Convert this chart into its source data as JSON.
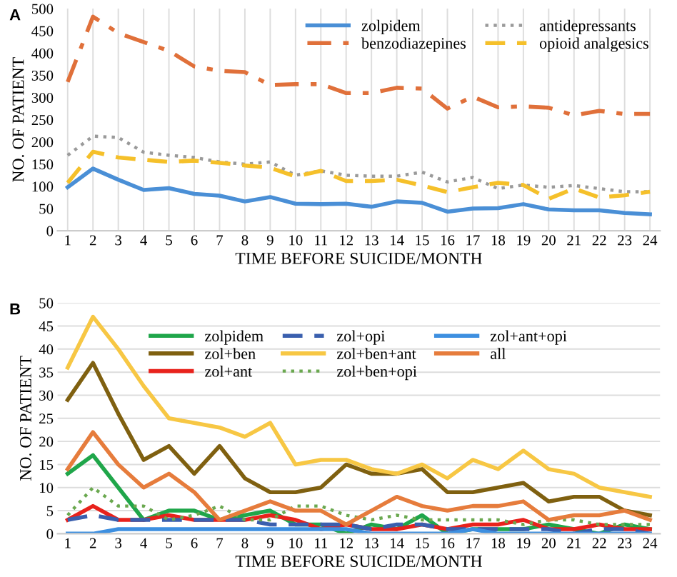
{
  "chart_data": [
    {
      "type": "line",
      "title": "A",
      "xlabel": "TIME BEFORE SUICIDE/MONTH",
      "ylabel": "NO. OF PATIENT",
      "categories": [
        "1",
        "2",
        "3",
        "4",
        "5",
        "6",
        "7",
        "8",
        "9",
        "10",
        "11",
        "12",
        "13",
        "14",
        "15",
        "16",
        "17",
        "18",
        "19",
        "20",
        "21",
        "22",
        "23",
        "24"
      ],
      "ylim": [
        0,
        500
      ],
      "yticks": [
        0,
        50,
        100,
        150,
        200,
        250,
        300,
        350,
        400,
        450,
        500
      ],
      "grid": "x",
      "legend": "top right",
      "marker": "none",
      "series": [
        {
          "name": "zolpidem",
          "color": "#4a8fd6",
          "line_style": "solid",
          "values": [
            98,
            140,
            115,
            92,
            96,
            83,
            79,
            66,
            76,
            61,
            60,
            61,
            54,
            66,
            63,
            43,
            50,
            51,
            60,
            48,
            46,
            46,
            40,
            37
          ]
        },
        {
          "name": "benzodiazepines",
          "color": "#e0703a",
          "line_style": "dashdot",
          "values": [
            335,
            482,
            445,
            425,
            405,
            370,
            360,
            357,
            328,
            330,
            330,
            310,
            310,
            322,
            320,
            275,
            302,
            278,
            280,
            277,
            260,
            270,
            263,
            263
          ]
        },
        {
          "name": "antidepressants",
          "color": "#9a9a9a",
          "line_style": "dotted",
          "values": [
            170,
            213,
            210,
            177,
            170,
            165,
            155,
            150,
            155,
            125,
            135,
            125,
            123,
            123,
            132,
            110,
            120,
            95,
            103,
            98,
            102,
            95,
            88,
            88
          ]
        },
        {
          "name": "opioid analgesics",
          "color": "#f5c02a",
          "line_style": "dashed",
          "values": [
            108,
            178,
            165,
            160,
            155,
            158,
            153,
            147,
            142,
            122,
            135,
            112,
            112,
            115,
            102,
            87,
            98,
            108,
            103,
            72,
            95,
            75,
            80,
            88
          ]
        }
      ]
    },
    {
      "type": "line",
      "title": "B",
      "xlabel": "TIME BEFORE SUICIDE/MONTH",
      "ylabel": "NO. OF PATIENT",
      "categories": [
        "1",
        "2",
        "3",
        "4",
        "5",
        "6",
        "7",
        "8",
        "9",
        "10",
        "11",
        "12",
        "13",
        "14",
        "15",
        "16",
        "17",
        "18",
        "19",
        "20",
        "21",
        "22",
        "23",
        "24"
      ],
      "ylim": [
        0,
        50
      ],
      "yticks": [
        0,
        5,
        10,
        15,
        20,
        25,
        30,
        35,
        40,
        45,
        50
      ],
      "grid": "y",
      "legend": "top",
      "marker": "none",
      "series": [
        {
          "name": "zolpidem",
          "color": "#1fa64a",
          "line_style": "solid",
          "values": [
            13,
            17,
            10,
            3,
            5,
            5,
            3,
            4,
            5,
            2,
            2,
            0,
            2,
            1,
            4,
            0,
            1,
            1,
            1,
            2,
            1,
            0,
            2,
            1
          ]
        },
        {
          "name": "zol+ben",
          "color": "#7f6010",
          "line_style": "solid",
          "values": [
            29,
            37,
            26,
            16,
            19,
            13,
            19,
            12,
            9,
            9,
            10,
            15,
            13,
            13,
            14,
            9,
            9,
            10,
            11,
            7,
            8,
            8,
            5,
            4
          ]
        },
        {
          "name": "zol+ant",
          "color": "#e8221c",
          "line_style": "solid",
          "values": [
            3,
            6,
            3,
            3,
            4,
            3,
            3,
            3,
            4,
            3,
            1,
            2,
            1,
            1,
            2,
            1,
            2,
            2,
            3,
            1,
            1,
            2,
            1,
            1
          ]
        },
        {
          "name": "zol+opi",
          "color": "#3a5fae",
          "line_style": "dashed",
          "values": [
            3,
            4,
            3,
            3,
            3,
            3,
            3,
            3,
            2,
            2,
            2,
            2,
            1,
            2,
            2,
            1,
            1,
            1,
            1,
            1,
            0,
            1,
            1,
            0
          ]
        },
        {
          "name": "zol+ben+ant",
          "color": "#f7c744",
          "line_style": "solid",
          "values": [
            36,
            47,
            40,
            32,
            25,
            24,
            23,
            21,
            24,
            15,
            16,
            16,
            14,
            13,
            15,
            12,
            16,
            14,
            18,
            14,
            13,
            10,
            9,
            8
          ]
        },
        {
          "name": "zol+ben+opi",
          "color": "#6aa84f",
          "line_style": "dotted",
          "values": [
            4,
            10,
            6,
            6,
            3,
            4,
            6,
            3,
            3,
            6,
            6,
            4,
            3,
            4,
            3,
            3,
            3,
            3,
            2,
            3,
            3,
            2,
            2,
            2
          ]
        },
        {
          "name": "zol+ant+opi",
          "color": "#3d8fe0",
          "line_style": "solid",
          "values": [
            0,
            0,
            1,
            1,
            1,
            1,
            1,
            1,
            1,
            1,
            1,
            1,
            0,
            0,
            0,
            0,
            1,
            0,
            0,
            0,
            0,
            0,
            0,
            0
          ]
        },
        {
          "name": "all",
          "color": "#e67c3c",
          "line_style": "solid",
          "values": [
            14,
            22,
            15,
            10,
            13,
            9,
            3,
            5,
            7,
            5,
            5,
            2,
            5,
            8,
            6,
            5,
            6,
            6,
            7,
            3,
            4,
            4,
            5,
            3
          ]
        }
      ]
    }
  ]
}
